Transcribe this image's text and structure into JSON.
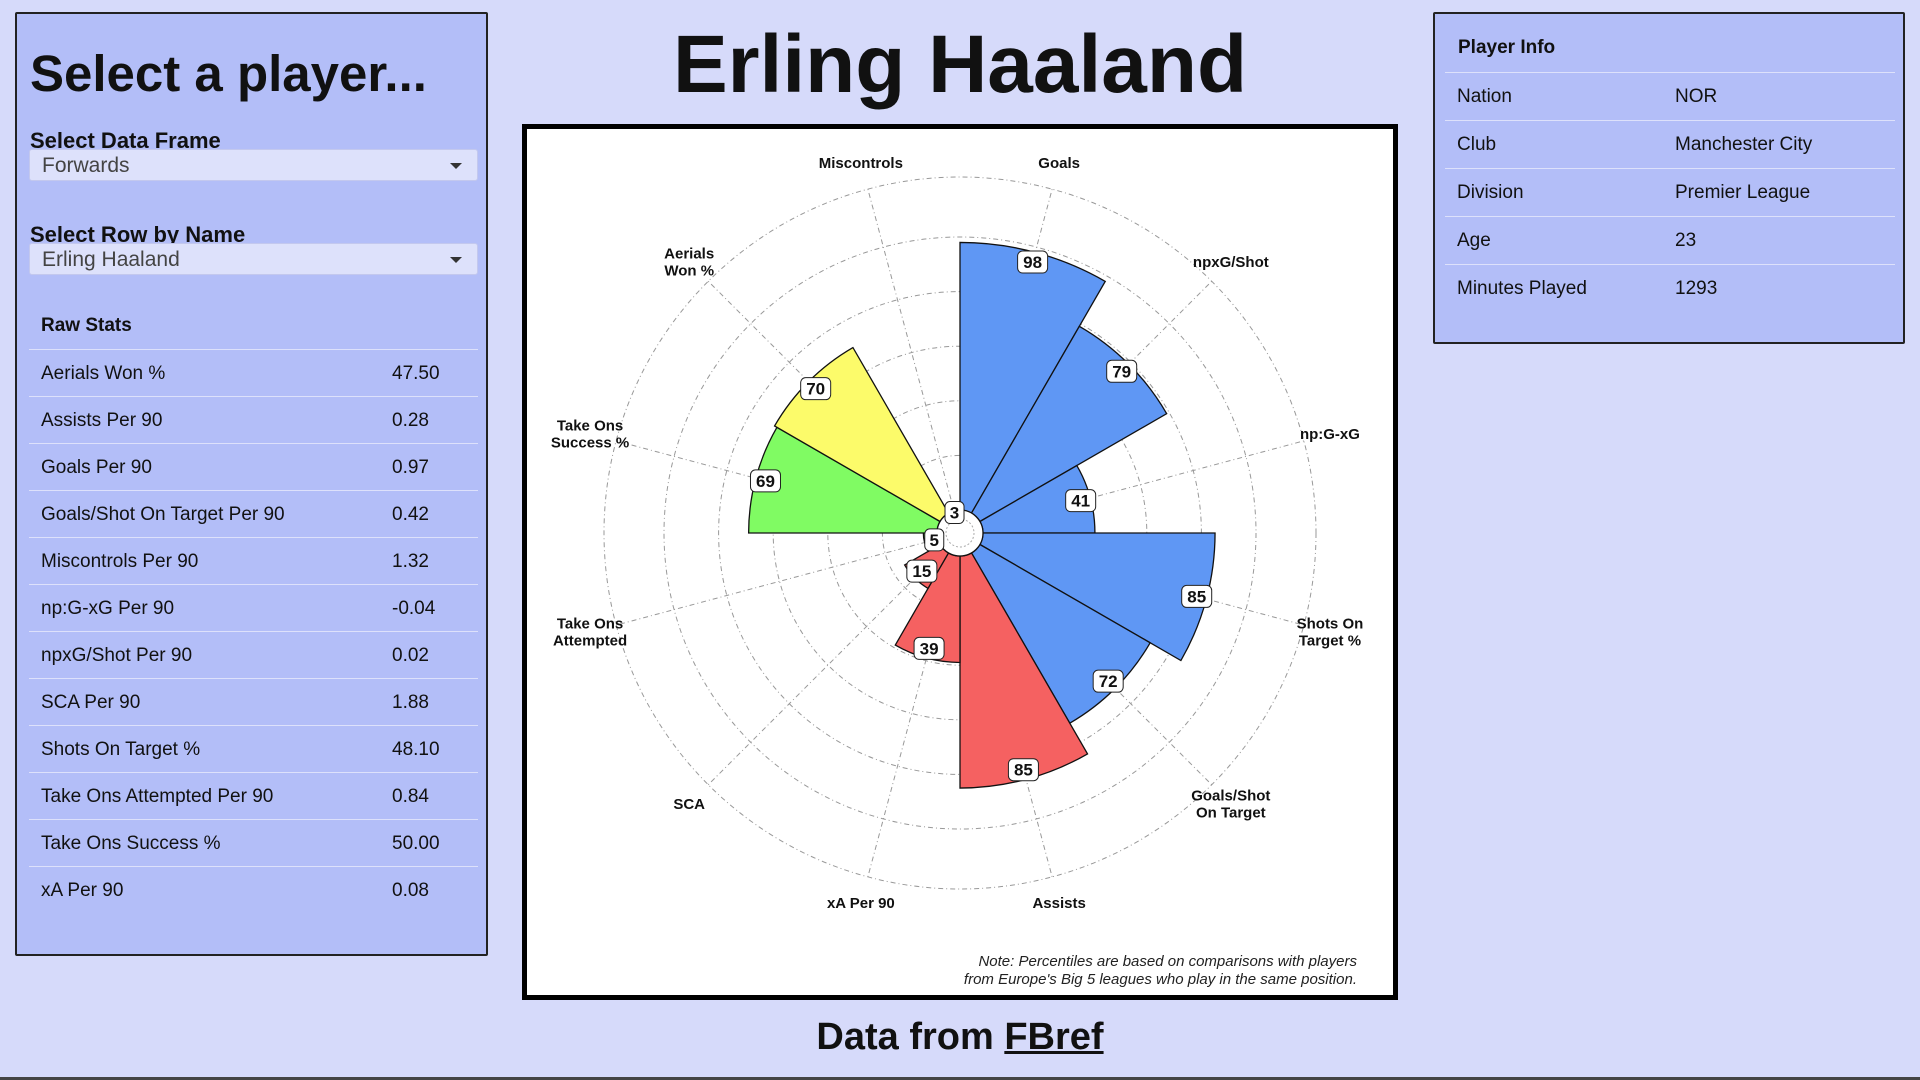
{
  "left_panel": {
    "title": "Select a player...",
    "data_frame_label": "Select Data Frame",
    "data_frame_value": "Forwards",
    "row_label": "Select Row by Name",
    "row_value": "Erling Haaland",
    "raw_stats_title": "Raw Stats",
    "raw_stats": [
      {
        "name": "Aerials Won %",
        "value": "47.50"
      },
      {
        "name": "Assists Per 90",
        "value": "0.28"
      },
      {
        "name": "Goals Per 90",
        "value": "0.97"
      },
      {
        "name": "Goals/Shot On Target Per 90",
        "value": "0.42"
      },
      {
        "name": "Miscontrols Per 90",
        "value": "1.32"
      },
      {
        "name": "np:G-xG Per 90",
        "value": "-0.04"
      },
      {
        "name": "npxG/Shot Per 90",
        "value": "0.02"
      },
      {
        "name": "SCA Per 90",
        "value": "1.88"
      },
      {
        "name": "Shots On Target %",
        "value": "48.10"
      },
      {
        "name": "Take Ons Attempted Per 90",
        "value": "0.84"
      },
      {
        "name": "Take Ons Success %",
        "value": "50.00"
      },
      {
        "name": "xA Per 90",
        "value": "0.08"
      }
    ]
  },
  "header": {
    "player_name": "Erling Haaland"
  },
  "player_info": {
    "title": "Player Info",
    "rows": [
      {
        "name": "Nation",
        "value": "NOR"
      },
      {
        "name": "Club",
        "value": "Manchester City"
      },
      {
        "name": "Division",
        "value": "Premier League"
      },
      {
        "name": "Age",
        "value": "23"
      },
      {
        "name": "Minutes Played",
        "value": "1293"
      }
    ]
  },
  "chart_data": {
    "type": "polar-bar",
    "rlim": [
      0,
      100
    ],
    "grid": true,
    "categories": [
      {
        "label": [
          "Goals"
        ],
        "value": 98,
        "color": "#5f97f4"
      },
      {
        "label": [
          "npxG/Shot"
        ],
        "value": 79,
        "color": "#5f97f4"
      },
      {
        "label": [
          "np:G-xG"
        ],
        "value": 41,
        "color": "#5f97f4"
      },
      {
        "label": [
          "Shots On",
          "Target %"
        ],
        "value": 85,
        "color": "#5f97f4"
      },
      {
        "label": [
          "Goals/Shot",
          "On Target"
        ],
        "value": 72,
        "color": "#5f97f4"
      },
      {
        "label": [
          "Assists"
        ],
        "value": 85,
        "color": "#f56161"
      },
      {
        "label": [
          "xA Per 90"
        ],
        "value": 39,
        "color": "#f56161"
      },
      {
        "label": [
          "SCA"
        ],
        "value": 15,
        "color": "#f56161"
      },
      {
        "label": [
          "Take Ons",
          "Attempted"
        ],
        "value": 5,
        "color": "#80fb63"
      },
      {
        "label": [
          "Take Ons",
          "Success %"
        ],
        "value": 69,
        "color": "#80fb63"
      },
      {
        "label": [
          "Aerials",
          "Won %"
        ],
        "value": 70,
        "color": "#fcfb6a"
      },
      {
        "label": [
          "Miscontrols"
        ],
        "value": 3,
        "color": "#fcfb6a"
      }
    ],
    "note": "Note: Percentiles are based on comparisons with players from Europe's Big 5 leagues who play in the same position."
  },
  "footer": {
    "prefix": "Data from ",
    "link": "FBref"
  }
}
